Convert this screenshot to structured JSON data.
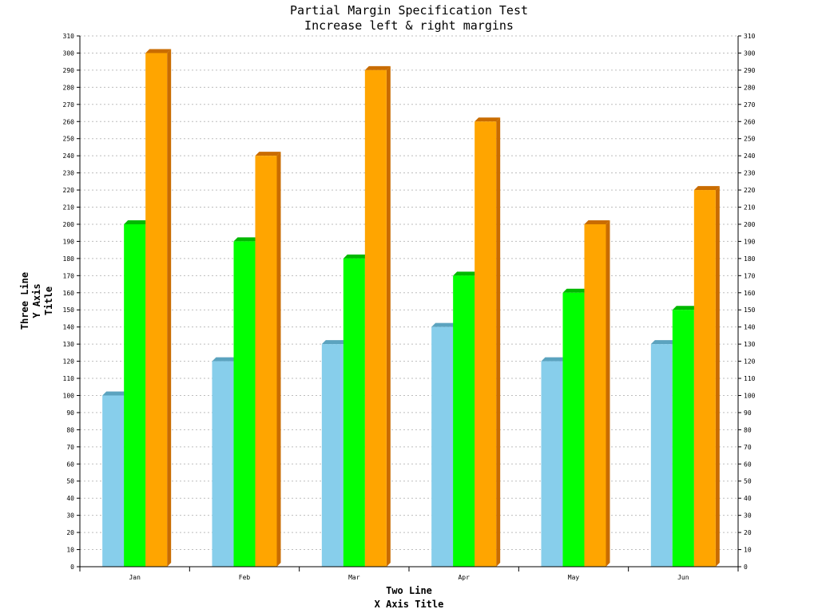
{
  "chart_data": {
    "type": "bar",
    "title": [
      "Partial Margin Specification Test",
      "Increase left & right margins"
    ],
    "xlabel": [
      "Two Line",
      "X Axis Title"
    ],
    "ylabel": [
      "Three Line",
      "Y Axis",
      "Title"
    ],
    "categories": [
      "Jan",
      "Feb",
      "Mar",
      "Apr",
      "May",
      "Jun"
    ],
    "ylim": [
      0,
      310
    ],
    "ytick_step": 10,
    "grid": true,
    "secondary_y_axis": true,
    "style": "3d",
    "series": [
      {
        "values": [
          100,
          120,
          130,
          140,
          120,
          130
        ],
        "color": "#87CEEB",
        "side_color": "#5BA3BF"
      },
      {
        "values": [
          200,
          190,
          180,
          170,
          160,
          150
        ],
        "color": "#00FF00",
        "side_color": "#00B800"
      },
      {
        "values": [
          300,
          240,
          290,
          260,
          200,
          220
        ],
        "color": "#FFA500",
        "side_color": "#C96C00"
      }
    ]
  }
}
